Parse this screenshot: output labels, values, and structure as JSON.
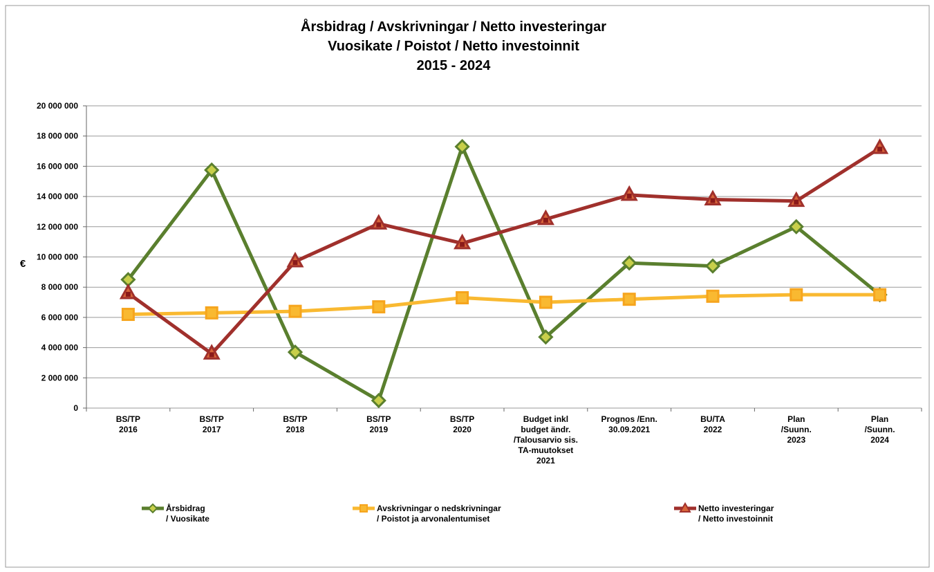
{
  "chart_data": {
    "type": "line",
    "title": [
      "Årsbidrag / Avskrivningar / Netto investeringar",
      "Vuosikate / Poistot / Netto investoinnit",
      "2015 - 2024"
    ],
    "y_label": "€",
    "categories": [
      "BS/TP\n2016",
      "BS/TP\n2017",
      "BS/TP\n2018",
      "BS/TP\n2019",
      "BS/TP\n2020",
      "Budget inkl\nbudget ändr.\n/Talousarvio sis.\nTA-muutokset\n2021",
      "Prognos /Enn.\n30.09.2021",
      "BU/TA\n2022",
      "Plan\n/Suunn.\n2023",
      "Plan\n/Suunn.\n2024"
    ],
    "series": [
      {
        "name": "Årsbidrag\n/ Vuosikate",
        "color": "#5a7f2e",
        "values": [
          8500000,
          15750000,
          3700000,
          500000,
          17300000,
          4700000,
          9600000,
          9400000,
          12000000,
          7500000
        ]
      },
      {
        "name": "Avskrivningar o nedskrivningar\n/ Poistot ja arvonalentumiset",
        "color": "#f9b931",
        "values": [
          6200000,
          6300000,
          6400000,
          6700000,
          7300000,
          7000000,
          7200000,
          7400000,
          7500000,
          7500000
        ]
      },
      {
        "name": "Netto investeringar\n/ Netto investoinnit",
        "color": "#a0302c",
        "values": [
          7600000,
          3600000,
          9700000,
          12200000,
          10900000,
          12500000,
          14100000,
          13800000,
          13700000,
          17200000
        ]
      }
    ],
    "ylim": [
      0,
      20000000
    ],
    "yticks": [
      0,
      {
        "value": 2000000,
        "label": "2 000 000"
      },
      {
        "value": 4000000,
        "label": "4 000 000"
      },
      {
        "value": 6000000,
        "label": "6 000 000"
      },
      {
        "value": 8000000,
        "label": "8 000 000"
      },
      {
        "value": 10000000,
        "label": "10 000 000"
      },
      {
        "value": 12000000,
        "label": "12 000 000"
      },
      {
        "value": 14000000,
        "label": "14 000 000"
      },
      {
        "value": 16000000,
        "label": "16 000 000"
      },
      {
        "value": 18000000,
        "label": "18 000 000"
      },
      {
        "value": 20000000,
        "label": "20 000 000"
      }
    ],
    "grid": true,
    "legend": "bottom"
  }
}
